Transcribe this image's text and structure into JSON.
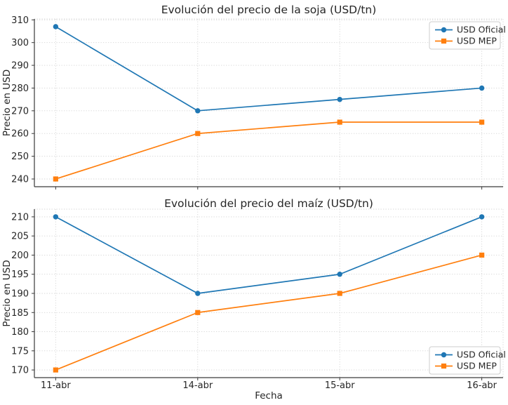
{
  "figure": {
    "background": "#ffffff",
    "text_color": "#262626",
    "grid_color": "#d4d4d4",
    "spine_color": "#3a3a3a"
  },
  "chart_data": [
    {
      "type": "line",
      "title": "Evolución del precio de la soja (USD/tn)",
      "xlabel": "",
      "ylabel": "Precio en USD",
      "categories": [
        "11-abr",
        "14-abr",
        "15-abr",
        "16-abr"
      ],
      "series": [
        {
          "name": "USD Oficial",
          "color": "#1f77b4",
          "marker": "circle",
          "values": [
            307,
            270,
            275,
            280
          ]
        },
        {
          "name": "USD MEP",
          "color": "#ff7f0e",
          "marker": "square",
          "values": [
            240,
            260,
            265,
            265
          ]
        }
      ],
      "yticks": [
        240,
        250,
        260,
        270,
        280,
        290,
        300,
        310
      ],
      "ylim": [
        236.6,
        310.4
      ],
      "grid": true,
      "show_x_tick_labels": false,
      "legend_position": "top-right"
    },
    {
      "type": "line",
      "title": "Evolución del precio del maíz (USD/tn)",
      "xlabel": "Fecha",
      "ylabel": "Precio en USD",
      "categories": [
        "11-abr",
        "14-abr",
        "15-abr",
        "16-abr"
      ],
      "series": [
        {
          "name": "USD Oficial",
          "color": "#1f77b4",
          "marker": "circle",
          "values": [
            210,
            190,
            195,
            210
          ]
        },
        {
          "name": "USD MEP",
          "color": "#ff7f0e",
          "marker": "square",
          "values": [
            170,
            185,
            190,
            200
          ]
        }
      ],
      "yticks": [
        170,
        175,
        180,
        185,
        190,
        195,
        200,
        205,
        210
      ],
      "ylim": [
        168,
        212
      ],
      "grid": true,
      "show_x_tick_labels": true,
      "legend_position": "bottom-right"
    }
  ]
}
